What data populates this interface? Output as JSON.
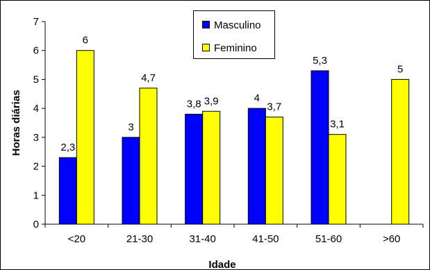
{
  "chart_data": {
    "type": "bar",
    "categories": [
      "<20",
      "21-30",
      "31-40",
      "41-50",
      "51-60",
      ">60"
    ],
    "series": [
      {
        "name": "Masculino",
        "color": "#0000FF",
        "values": [
          2.3,
          3,
          3.8,
          4,
          5.3,
          null
        ],
        "labels": [
          "2,3",
          "3",
          "3,8",
          "4",
          "5,3",
          ""
        ]
      },
      {
        "name": "Feminino",
        "color": "#FFFF00",
        "values": [
          6,
          4.7,
          3.9,
          3.7,
          3.1,
          5
        ],
        "labels": [
          "6",
          "4,7",
          "3,9",
          "3,7",
          "3,1",
          "5"
        ]
      }
    ],
    "xlabel": "Idade",
    "ylabel": "Horas diárias",
    "ylim": [
      0,
      7
    ],
    "yticks": [
      "0",
      "1",
      "2",
      "3",
      "4",
      "5",
      "6",
      "7"
    ],
    "grid": false,
    "legend": "top-center"
  }
}
